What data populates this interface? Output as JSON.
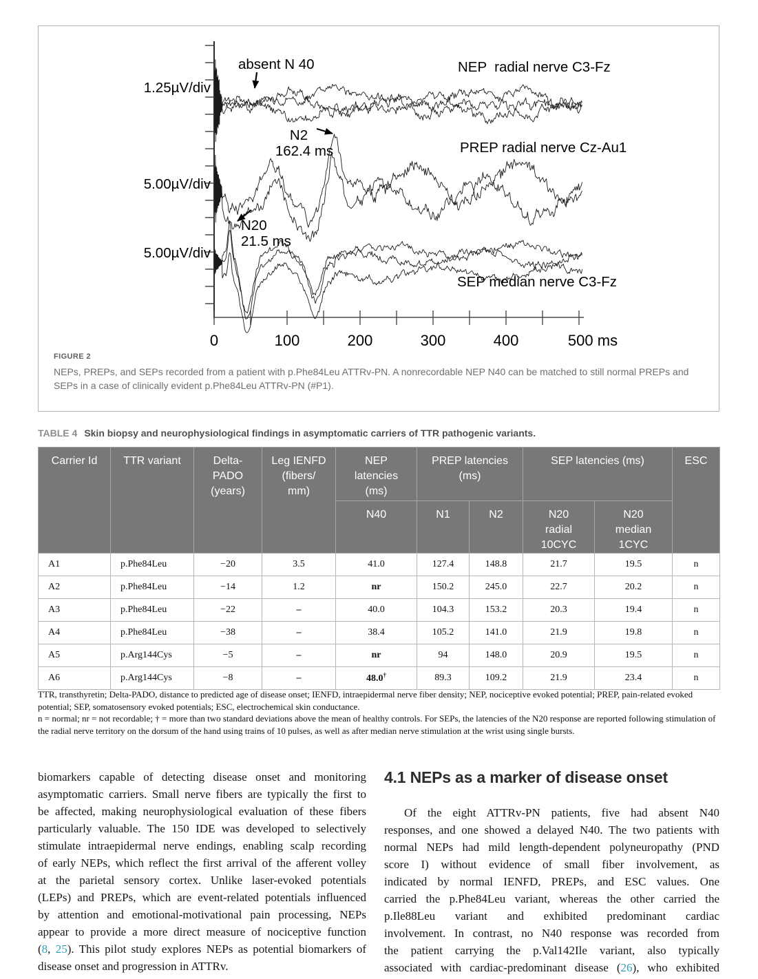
{
  "figure": {
    "label": "FIGURE 2",
    "caption": "NEPs, PREPs, and SEPs recorded from a patient with p.Phe84Leu ATTRv-PN. A nonrecordable NEP N40 can be matched to still normal PREPs and SEPs in a case of clinically evident p.Phe84Leu ATTRv-PN (#P1)."
  },
  "chart_data": {
    "type": "line",
    "x_axis": {
      "tick_labels": [
        "0",
        "100",
        "200",
        "300",
        "400",
        "500 ms"
      ],
      "tick_ms": [
        0,
        100,
        200,
        300,
        400,
        500
      ],
      "minor_tick_ms": 50,
      "range_ms": [
        0,
        500
      ]
    },
    "traces": [
      {
        "name": "NEP  radial nerve C3-Fz",
        "scale_label": "1.25µV/div",
        "sweeps": 3,
        "annotation": {
          "text": "absent N 40"
        }
      },
      {
        "name": "PREP radial nerve Cz-Au1",
        "scale_label": "5.00µV/div",
        "sweeps": 2,
        "peak": {
          "label": "N2",
          "latency_label": "162.4 ms",
          "latency_ms": 162.4
        }
      },
      {
        "name": "SEP median nerve C3-Fz",
        "scale_label": "5.00µV/div",
        "sweeps": 3,
        "peak": {
          "label": "N20",
          "latency_label": "21.5 ms",
          "latency_ms": 21.5
        }
      }
    ]
  },
  "table": {
    "label": "TABLE 4",
    "title": "Skin biopsy and neurophysiological findings in asymptomatic carriers of TTR pathogenic variants.",
    "headers": {
      "carrier": "Carrier Id",
      "ttr": "TTR variant",
      "delta": "Delta-\nPADO\n(years)",
      "ienfd": "Leg IENFD\n(fibers/\nmm)",
      "nep": "NEP\nlatencies\n(ms)",
      "prep": "PREP latencies\n(ms)",
      "sep": "SEP latencies (ms)",
      "esc": "ESC",
      "n40": "N40",
      "n1": "N1",
      "n2": "N2",
      "n20_radial": "N20\nradial\n10CYC",
      "n20_median": "N20\nmedian\n1CYC"
    },
    "rows": [
      [
        "A1",
        "p.Phe84Leu",
        "−20",
        "3.5",
        "41.0",
        "127.4",
        "148.8",
        "21.7",
        "19.5",
        "n"
      ],
      [
        "A2",
        "p.Phe84Leu",
        "−14",
        "1.2",
        {
          "v": "nr",
          "b": true
        },
        "150.2",
        "245.0",
        "22.7",
        "20.2",
        "n"
      ],
      [
        "A3",
        "p.Phe84Leu",
        "−22",
        {
          "v": "–",
          "b": true
        },
        "40.0",
        "104.3",
        "153.2",
        "20.3",
        "19.4",
        "n"
      ],
      [
        "A4",
        "p.Phe84Leu",
        "−38",
        {
          "v": "–",
          "b": true
        },
        "38.4",
        "105.2",
        "141.0",
        "21.9",
        "19.8",
        "n"
      ],
      [
        "A5",
        "p.Arg144Cys",
        "−5",
        {
          "v": "–",
          "b": true
        },
        {
          "v": "nr",
          "b": true
        },
        "94",
        "148.0",
        "20.9",
        "19.5",
        "n"
      ],
      [
        "A6",
        "p.Arg144Cys",
        "−8",
        {
          "v": "–",
          "b": true
        },
        {
          "v": "48.0",
          "sup": "†",
          "b": true
        },
        "89.3",
        "109.2",
        "21.9",
        "23.4",
        "n"
      ]
    ],
    "footnotes": [
      "TTR, transthyretin; Delta-PADO, distance to predicted age of disease onset; IENFD, intraepidermal nerve fiber density; NEP, nociceptive evoked potential; PREP, pain-related evoked potential; SEP, somatosensory evoked potentials; ESC, electrochemical skin conductance.",
      "n = normal; nr = not recordable; † = more than two standard deviations above the mean of healthy controls. For SEPs, the latencies of the N20 response are reported following stimulation of the radial nerve territory on the dorsum of the hand using trains of 10 pulses, as well as after median nerve stimulation at the wrist using single bursts."
    ]
  },
  "body": {
    "left_lines": [
      {
        "segs": [
          {
            "t": "biomarkers capable of detecting disease onset and monitoring"
          }
        ]
      },
      {
        "segs": [
          {
            "t": "asymptomatic carriers. Small nerve fibers are typically the first to"
          }
        ]
      },
      {
        "segs": [
          {
            "t": "be affected, making neurophysiological evaluation of these fibers"
          }
        ]
      },
      {
        "segs": [
          {
            "t": "particularly valuable. The 150 IDE was developed to selectively"
          }
        ]
      },
      {
        "segs": [
          {
            "t": "stimulate intraepidermal nerve endings, enabling scalp recording"
          }
        ]
      },
      {
        "segs": [
          {
            "t": "of early NEPs, which reflect the first arrival of the afferent volley"
          }
        ]
      },
      {
        "segs": [
          {
            "t": "at the parietal sensory cortex. Unlike laser-evoked potentials"
          }
        ]
      },
      {
        "segs": [
          {
            "t": "(LEPs) and PREPs, which are event-related potentials influenced"
          }
        ]
      },
      {
        "segs": [
          {
            "t": "by attention and emotional-motivational pain processing, NEPs"
          }
        ]
      },
      {
        "segs": [
          {
            "t": "appear to provide a more direct measure of nociceptive function"
          }
        ]
      },
      {
        "segs": [
          {
            "t": "("
          },
          {
            "t": "8",
            "ref": true
          },
          {
            "t": ", "
          },
          {
            "t": "25",
            "ref": true
          },
          {
            "t": "). This pilot study explores NEPs as potential biomarkers of"
          }
        ]
      },
      {
        "segs": [
          {
            "t": "disease onset and progression in ATTRv."
          }
        ],
        "last": true
      }
    ],
    "right_heading": "4.1 NEPs as a marker of disease onset",
    "right_lines": [
      {
        "segs": [
          {
            "t": "Of the eight ATTRv-PN patients, five had absent N40"
          }
        ],
        "indent": true
      },
      {
        "segs": [
          {
            "t": "responses, and one showed a delayed N40. The two patients with"
          }
        ]
      },
      {
        "segs": [
          {
            "t": "normal NEPs had mild length-dependent polyneuropathy (PND"
          }
        ]
      },
      {
        "segs": [
          {
            "t": "score I) without evidence of small fiber involvement, as"
          }
        ]
      },
      {
        "segs": [
          {
            "t": "indicated by normal IENFD, PREPs, and ESC values. One"
          }
        ]
      },
      {
        "segs": [
          {
            "t": "carried the p.Phe84Leu variant, whereas the other carried the"
          }
        ]
      },
      {
        "segs": [
          {
            "t": "p.Ile88Leu variant and exhibited predominant cardiac"
          }
        ]
      },
      {
        "segs": [
          {
            "t": "involvement. In contrast, no N40 response was recorded from"
          }
        ]
      },
      {
        "segs": [
          {
            "t": "the patient carrying the p.Val142Ile variant, also typically"
          }
        ]
      },
      {
        "segs": [
          {
            "t": "associated with cardiac-predominant disease ("
          },
          {
            "t": "26",
            "ref": true
          },
          {
            "t": "), who exhibited"
          }
        ]
      }
    ]
  },
  "colors": {
    "accent_teal": "#2f9fb2",
    "table_header_bg": "#787878",
    "caption_gray": "#6e6e6e"
  }
}
